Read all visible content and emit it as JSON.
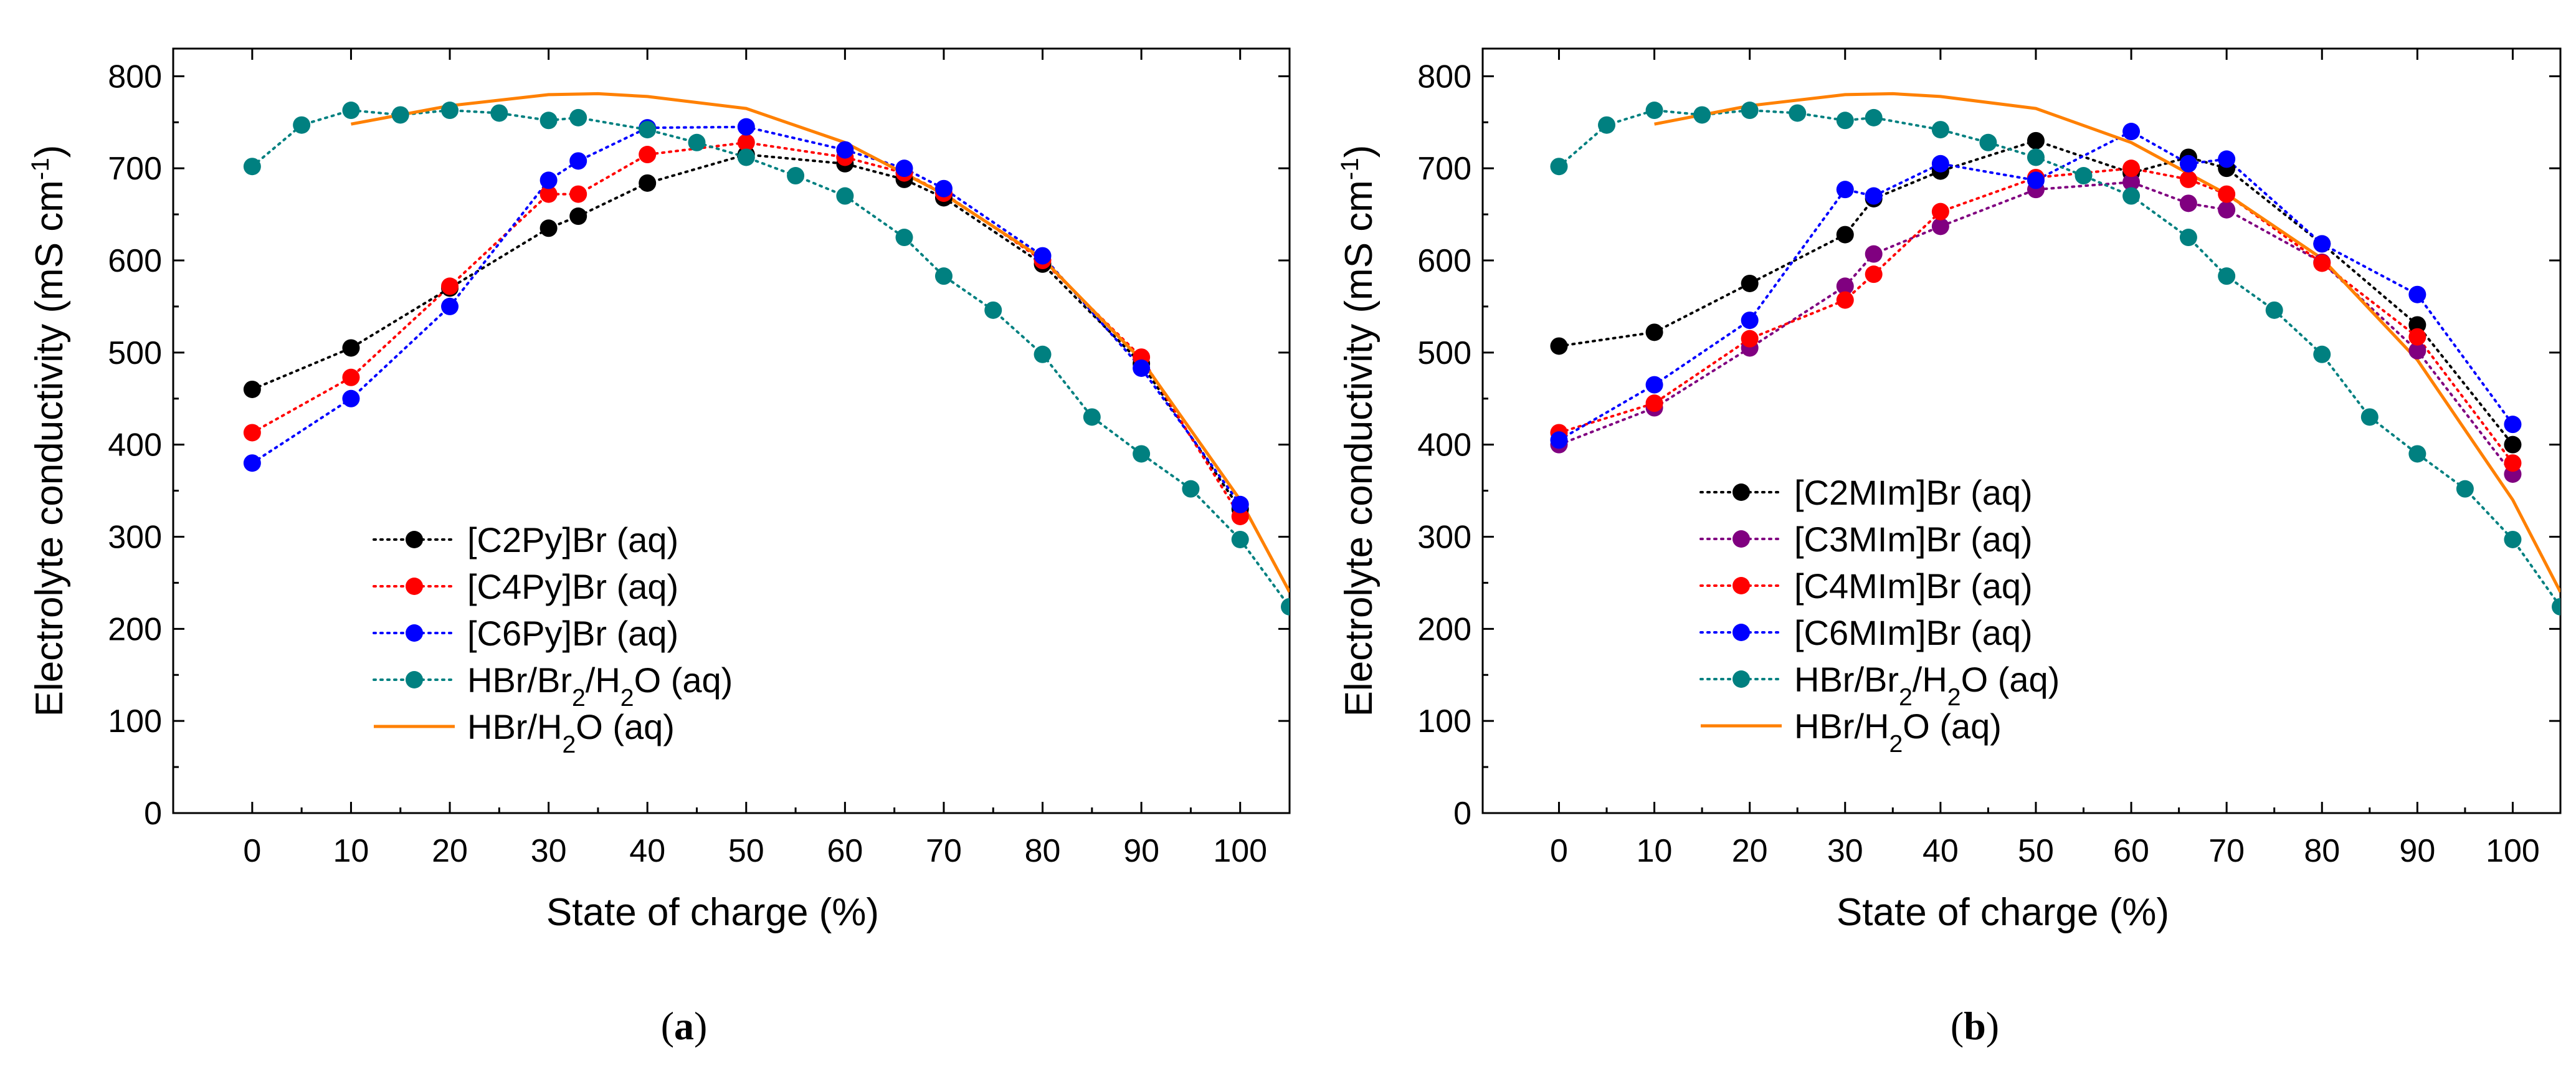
{
  "chart_data": [
    {
      "type": "line",
      "panel_label": "a",
      "xlabel": "State of charge (%)",
      "ylabel": "Electrolyte conductivity (mS cm",
      "ylabel_sup": "-1",
      "ylabel_close": ")",
      "xlim": [
        -8,
        105
      ],
      "ylim": [
        0,
        830
      ],
      "xticks": [
        0,
        10,
        20,
        30,
        40,
        50,
        60,
        70,
        80,
        90,
        100
      ],
      "yticks": [
        0,
        100,
        200,
        300,
        400,
        500,
        600,
        700,
        800
      ],
      "legend_position": "bottom-left",
      "series": [
        {
          "name": "[C2Py]Br (aq)",
          "color": "#000000",
          "style": "dotted-markers",
          "x": [
            0,
            10,
            20,
            30,
            33,
            40,
            50,
            60,
            66,
            70,
            80,
            90,
            100
          ],
          "y": [
            460,
            505,
            570,
            635,
            648,
            684,
            715,
            705,
            688,
            668,
            596,
            488,
            330
          ]
        },
        {
          "name": "[C4Py]Br (aq)",
          "color": "#ff0000",
          "style": "dotted-markers",
          "x": [
            0,
            10,
            20,
            30,
            33,
            40,
            50,
            60,
            66,
            70,
            80,
            90,
            100
          ],
          "y": [
            413,
            473,
            572,
            672,
            672,
            715,
            728,
            712,
            695,
            673,
            600,
            495,
            322
          ]
        },
        {
          "name": "[C6Py]Br (aq)",
          "color": "#0000ff",
          "style": "dotted-markers",
          "x": [
            0,
            10,
            20,
            30,
            33,
            40,
            50,
            60,
            66,
            70,
            80,
            90,
            100
          ],
          "y": [
            380,
            450,
            550,
            687,
            708,
            744,
            745,
            720,
            700,
            678,
            605,
            483,
            335
          ]
        },
        {
          "name": "HBr/Br₂/H₂O (aq)",
          "color": "#008080",
          "style": "dotted-markers",
          "x": [
            0,
            5,
            10,
            15,
            20,
            25,
            30,
            33,
            40,
            45,
            50,
            55,
            60,
            66,
            70,
            75,
            80,
            85,
            90,
            95,
            100,
            105
          ],
          "y": [
            702,
            747,
            763,
            758,
            763,
            760,
            752,
            755,
            742,
            728,
            712,
            692,
            670,
            625,
            583,
            546,
            498,
            430,
            390,
            352,
            297,
            224
          ]
        },
        {
          "name": "HBr/H₂O (aq)",
          "color": "#ff8000",
          "style": "line",
          "x": [
            10,
            20,
            30,
            35,
            40,
            50,
            60,
            70,
            80,
            90,
            100,
            105
          ],
          "y": [
            748,
            768,
            780,
            781,
            778,
            765,
            728,
            672,
            602,
            492,
            340,
            240
          ]
        }
      ]
    },
    {
      "type": "line",
      "panel_label": "b",
      "xlabel": "State of charge (%)",
      "ylabel": "Electrolyte conductivity (mS cm",
      "ylabel_sup": "-1",
      "ylabel_close": ")",
      "xlim": [
        -8,
        105
      ],
      "ylim": [
        0,
        830
      ],
      "xticks": [
        0,
        10,
        20,
        30,
        40,
        50,
        60,
        70,
        80,
        90,
        100
      ],
      "yticks": [
        0,
        100,
        200,
        300,
        400,
        500,
        600,
        700,
        800
      ],
      "legend_position": "bottom-left",
      "series": [
        {
          "name": "[C2MIm]Br (aq)",
          "color": "#000000",
          "style": "dotted-markers",
          "x": [
            0,
            10,
            20,
            30,
            33,
            40,
            50,
            60,
            66,
            70,
            80,
            90,
            100
          ],
          "y": [
            507,
            522,
            575,
            628,
            667,
            697,
            730,
            695,
            712,
            700,
            618,
            530,
            400
          ]
        },
        {
          "name": "[C3MIm]Br (aq)",
          "color": "#800080",
          "style": "dotted-markers",
          "x": [
            0,
            10,
            20,
            30,
            33,
            40,
            50,
            60,
            66,
            70,
            80,
            90,
            100
          ],
          "y": [
            400,
            440,
            505,
            572,
            607,
            637,
            677,
            685,
            662,
            655,
            598,
            502,
            368
          ]
        },
        {
          "name": "[C4MIm]Br (aq)",
          "color": "#ff0000",
          "style": "dotted-markers",
          "x": [
            0,
            10,
            20,
            30,
            33,
            40,
            50,
            60,
            66,
            70,
            80,
            90,
            100
          ],
          "y": [
            413,
            445,
            515,
            557,
            585,
            653,
            690,
            700,
            688,
            672,
            597,
            517,
            380
          ]
        },
        {
          "name": "[C6MIm]Br (aq)",
          "color": "#0000ff",
          "style": "dotted-markers",
          "x": [
            0,
            10,
            20,
            30,
            33,
            40,
            50,
            60,
            66,
            70,
            80,
            90,
            100
          ],
          "y": [
            405,
            465,
            535,
            677,
            670,
            705,
            687,
            740,
            705,
            710,
            618,
            563,
            422
          ]
        },
        {
          "name": "HBr/Br₂/H₂O (aq)",
          "color": "#008080",
          "style": "dotted-markers",
          "x": [
            0,
            5,
            10,
            15,
            20,
            25,
            30,
            33,
            40,
            45,
            50,
            55,
            60,
            66,
            70,
            75,
            80,
            85,
            90,
            95,
            100,
            105
          ],
          "y": [
            702,
            747,
            763,
            758,
            763,
            760,
            752,
            755,
            742,
            728,
            712,
            692,
            670,
            625,
            583,
            546,
            498,
            430,
            390,
            352,
            297,
            224
          ]
        },
        {
          "name": "HBr/H₂O (aq)",
          "color": "#ff8000",
          "style": "line",
          "x": [
            10,
            20,
            30,
            35,
            40,
            50,
            60,
            70,
            80,
            90,
            100,
            105
          ],
          "y": [
            748,
            768,
            780,
            781,
            778,
            765,
            728,
            672,
            602,
            492,
            340,
            240
          ]
        }
      ]
    }
  ]
}
